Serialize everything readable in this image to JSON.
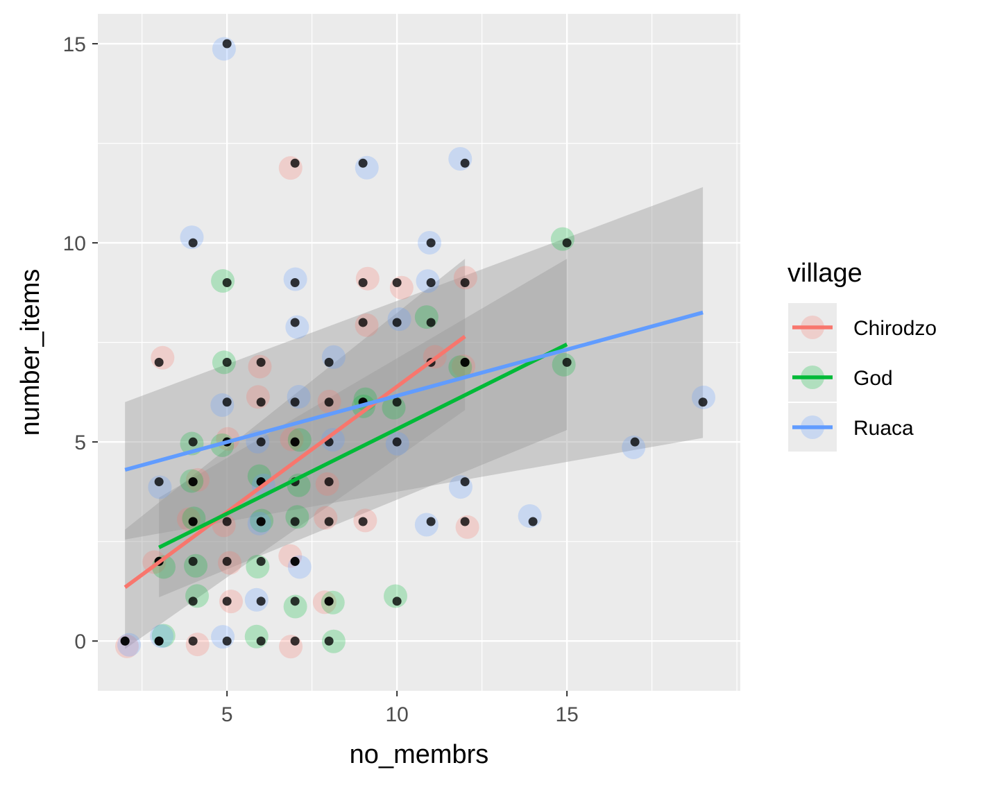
{
  "chart_data": {
    "type": "scatter",
    "title": "",
    "xlabel": "no_membrs",
    "ylabel": "number_items",
    "xlim": [
      1.2,
      20.1
    ],
    "ylim": [
      -1.25,
      15.75
    ],
    "xticks": [
      5,
      10,
      15
    ],
    "yticks": [
      0,
      5,
      10,
      15
    ],
    "x_tick_labels": [
      "5",
      "10",
      "15"
    ],
    "y_tick_labels": [
      "0",
      "5",
      "10",
      "15"
    ],
    "grid": true,
    "legend": {
      "title": "village",
      "placement": "right",
      "entries": [
        "Chirodzo",
        "God",
        "Ruaca"
      ]
    },
    "series": [
      {
        "name": "Chirodzo",
        "color": "#F8766D",
        "x": [
          2,
          3,
          4,
          4,
          5,
          5,
          5,
          6,
          6,
          7,
          7,
          7,
          8,
          8,
          8,
          9,
          9,
          9,
          10,
          11,
          12,
          12,
          12,
          7,
          8,
          3,
          4,
          5
        ],
        "y": [
          0,
          7,
          0,
          4,
          1,
          2,
          5,
          7,
          6,
          0,
          2,
          12,
          3,
          4,
          6,
          3,
          8,
          9,
          9,
          7,
          3,
          9,
          7,
          5,
          1,
          2,
          3,
          3
        ],
        "trend": {
          "x": [
            2,
            12
          ],
          "y": [
            1.35,
            7.65
          ],
          "ci_low": [
            -0.2,
            5.8
          ],
          "ci_high": [
            2.8,
            9.6
          ]
        }
      },
      {
        "name": "God",
        "color": "#00BA38",
        "x": [
          3,
          3,
          4,
          4,
          4,
          4,
          5,
          5,
          5,
          6,
          6,
          6,
          7,
          7,
          7,
          7,
          8,
          8,
          9,
          9,
          10,
          10,
          11,
          12,
          15,
          15,
          4,
          6
        ],
        "y": [
          0,
          2,
          1,
          2,
          3,
          5,
          7,
          9,
          5,
          0,
          2,
          4,
          1,
          3,
          4,
          5,
          0,
          1,
          6,
          6,
          1,
          6,
          8,
          7,
          10,
          7,
          4,
          3
        ],
        "trend": {
          "x": [
            3,
            15
          ],
          "y": [
            2.35,
            7.45
          ],
          "ci_low": [
            1.1,
            5.3
          ],
          "ci_high": [
            3.6,
            9.6
          ]
        }
      },
      {
        "name": "Ruaca",
        "color": "#619CFF",
        "x": [
          2,
          3,
          3,
          4,
          5,
          5,
          5,
          6,
          6,
          6,
          7,
          7,
          7,
          7,
          8,
          9,
          10,
          10,
          11,
          11,
          11,
          12,
          12,
          14,
          17,
          19,
          6,
          8
        ],
        "y": [
          0,
          0,
          4,
          10,
          15,
          0,
          6,
          1,
          5,
          3,
          9,
          8,
          6,
          2,
          7,
          12,
          8,
          5,
          10,
          9,
          3,
          12,
          4,
          3,
          5,
          6,
          4,
          5
        ],
        "trend": {
          "x": [
            2,
            19
          ],
          "y": [
            4.3,
            8.25
          ],
          "ci_low": [
            2.55,
            5.1
          ],
          "ci_high": [
            6.0,
            11.4
          ]
        }
      }
    ]
  }
}
